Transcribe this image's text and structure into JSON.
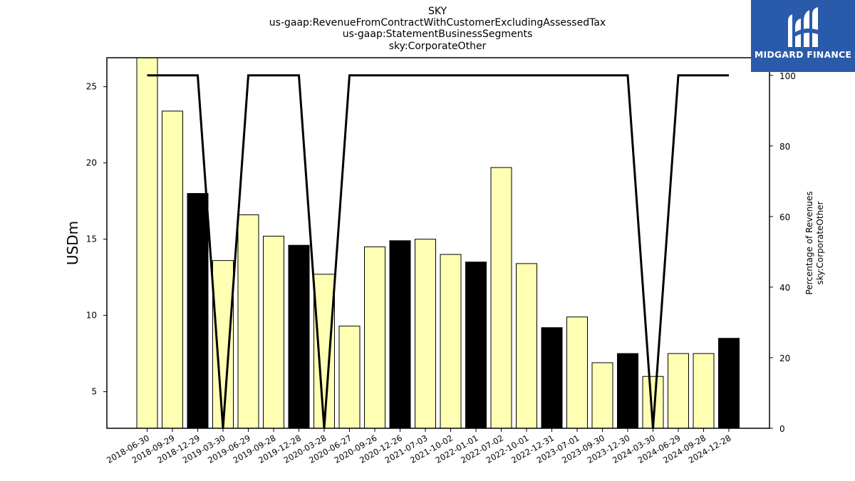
{
  "chart_data": {
    "type": "bar",
    "title_lines": [
      "SKY",
      "us-gaap:RevenueFromContractWithCustomerExcludingAssessedTax",
      "us-gaap:StatementBusinessSegments",
      "sky:CorporateOther"
    ],
    "ylabel": "USDm",
    "y2label_lines": [
      "Percentage of Revenues",
      "sky:CorporateOther"
    ],
    "ylim": [
      2.6,
      26.9
    ],
    "y2lim": [
      0,
      105
    ],
    "yticks": [
      5,
      10,
      15,
      20,
      25
    ],
    "y2ticks": [
      0,
      20,
      40,
      60,
      80,
      100
    ],
    "categories": [
      "2018-06-30",
      "2018-09-29",
      "2018-12-29",
      "2019-03-30",
      "2019-06-29",
      "2019-09-28",
      "2019-12-28",
      "2020-03-28",
      "2020-06-27",
      "2020-09-26",
      "2020-12-26",
      "2021-07-03",
      "2021-10-02",
      "2022-01-01",
      "2022-07-02",
      "2022-10-01",
      "2022-12-31",
      "2023-07-01",
      "2023-09-30",
      "2023-12-30",
      "2024-03-30",
      "2024-06-29",
      "2024-09-28",
      "2024-12-28"
    ],
    "series": [
      {
        "type": "bar",
        "values": [
          27.0,
          23.4,
          18.0,
          13.6,
          16.6,
          15.2,
          14.6,
          12.7,
          9.3,
          14.5,
          14.9,
          15.0,
          14.0,
          13.5,
          19.7,
          13.4,
          9.2,
          9.9,
          6.9,
          7.5,
          6.0,
          7.5,
          7.5,
          8.5
        ],
        "colors": [
          "#ffffb3",
          "#ffffb3",
          "#000000",
          "#ffffb3",
          "#ffffb3",
          "#ffffb3",
          "#000000",
          "#ffffb3",
          "#ffffb3",
          "#ffffb3",
          "#000000",
          "#ffffb3",
          "#ffffb3",
          "#000000",
          "#ffffb3",
          "#ffffb3",
          "#000000",
          "#ffffb3",
          "#ffffb3",
          "#000000",
          "#ffffb3",
          "#ffffb3",
          "#ffffb3",
          "#000000"
        ]
      },
      {
        "type": "line",
        "axis": "right",
        "values": [
          100,
          100,
          100,
          0,
          100,
          100,
          100,
          0,
          100,
          100,
          100,
          100,
          100,
          100,
          100,
          100,
          100,
          100,
          100,
          100,
          0,
          100,
          100,
          100
        ],
        "color": "#000000"
      }
    ],
    "grid": false
  },
  "logo": {
    "text": "MIDGARD FINANCE",
    "background": "#2a5aaa"
  }
}
